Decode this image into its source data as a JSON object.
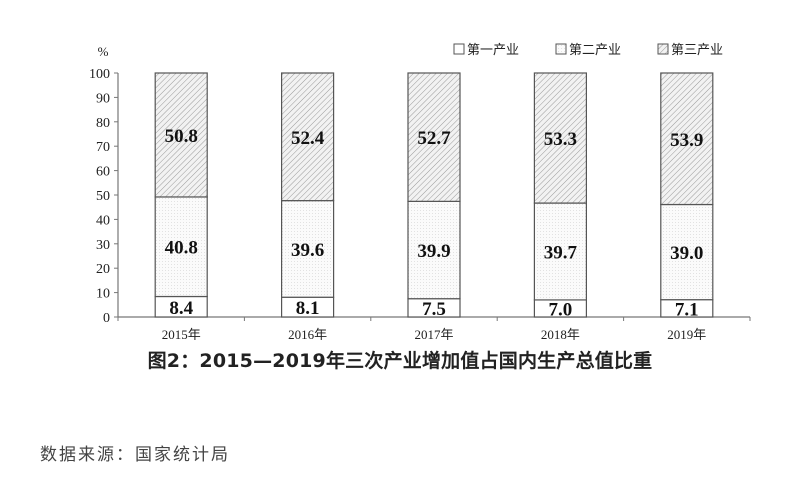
{
  "chart_data": {
    "type": "bar",
    "stacked": true,
    "title": "图2：2015—2019年三次产业增加值占国内生产总值比重",
    "ylabel": "%",
    "ylim": [
      0,
      100
    ],
    "yticks": [
      0,
      10,
      20,
      30,
      40,
      50,
      60,
      70,
      80,
      90,
      100
    ],
    "categories": [
      "2015年",
      "2016年",
      "2017年",
      "2018年",
      "2019年"
    ],
    "series": [
      {
        "name": "第一产业",
        "values": [
          8.4,
          8.1,
          7.5,
          7.0,
          7.1
        ],
        "labels": [
          "8.4",
          "8.1",
          "7.5",
          "7.0",
          "7.1"
        ],
        "fill": "#ffffff"
      },
      {
        "name": "第二产业",
        "values": [
          40.8,
          39.6,
          39.9,
          39.7,
          39.0
        ],
        "labels": [
          "40.8",
          "39.6",
          "39.9",
          "39.7",
          "39.0"
        ],
        "fill": "dots"
      },
      {
        "name": "第三产业",
        "values": [
          50.8,
          52.4,
          52.7,
          53.3,
          53.9
        ],
        "labels": [
          "50.8",
          "52.4",
          "52.7",
          "53.3",
          "53.9"
        ],
        "fill": "hatch"
      }
    ],
    "legend": "top-right",
    "grid": false
  },
  "source": "数据来源：国家统计局"
}
